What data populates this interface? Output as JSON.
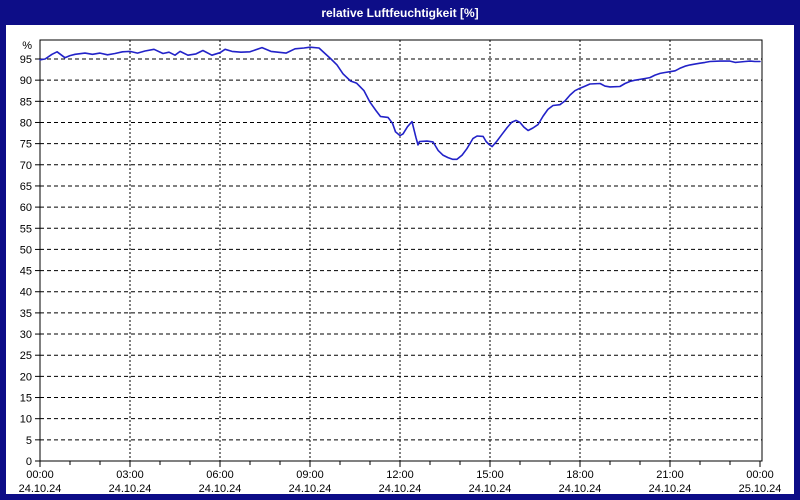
{
  "window": {
    "title": "relative Luftfeuchtigkeit [%]",
    "title_bar_color": "#0d0d87",
    "frame_color": "#0d0d87",
    "canvas_color": "#ffffff"
  },
  "chart_data": {
    "type": "line",
    "title": "relative Luftfeuchtigkeit [%]",
    "ylabel": "%",
    "xlabel": "",
    "grid": "dashed",
    "legend": "none",
    "ylim": [
      0,
      99.5
    ],
    "xlim_hours": [
      0,
      24
    ],
    "y_ticks": [
      0,
      5,
      10,
      15,
      20,
      25,
      30,
      35,
      40,
      45,
      50,
      55,
      60,
      65,
      70,
      75,
      80,
      85,
      90,
      95
    ],
    "x_ticks": [
      {
        "hour": 0,
        "time": "00:00",
        "date": "24.10.24"
      },
      {
        "hour": 3,
        "time": "03:00",
        "date": "24.10.24"
      },
      {
        "hour": 6,
        "time": "06:00",
        "date": "24.10.24"
      },
      {
        "hour": 9,
        "time": "09:00",
        "date": "24.10.24"
      },
      {
        "hour": 12,
        "time": "12:00",
        "date": "24.10.24"
      },
      {
        "hour": 15,
        "time": "15:00",
        "date": "24.10.24"
      },
      {
        "hour": 18,
        "time": "18:00",
        "date": "24.10.24"
      },
      {
        "hour": 21,
        "time": "21:00",
        "date": "24.10.24"
      },
      {
        "hour": 24,
        "time": "00:00",
        "date": "25.10.24"
      }
    ],
    "series": [
      {
        "name": "relative Luftfeuchtigkeit",
        "unit": "%",
        "color": "#2222c8",
        "points": [
          [
            0,
            94.8
          ],
          [
            0.17,
            95
          ],
          [
            0.4,
            96.1
          ],
          [
            0.57,
            96.7
          ],
          [
            0.83,
            95.3
          ],
          [
            1,
            95.8
          ],
          [
            1.17,
            96.1
          ],
          [
            1.5,
            96.4
          ],
          [
            1.75,
            96.1
          ],
          [
            2,
            96.4
          ],
          [
            2.25,
            96
          ],
          [
            2.5,
            96.3
          ],
          [
            2.75,
            96.7
          ],
          [
            3,
            96.8
          ],
          [
            3.25,
            96.4
          ],
          [
            3.5,
            96.9
          ],
          [
            3.8,
            97.3
          ],
          [
            4.1,
            96.3
          ],
          [
            4.3,
            96.6
          ],
          [
            4.5,
            95.9
          ],
          [
            4.67,
            96.8
          ],
          [
            4.93,
            95.9
          ],
          [
            5.2,
            96.2
          ],
          [
            5.43,
            97
          ],
          [
            5.73,
            95.9
          ],
          [
            6,
            96.5
          ],
          [
            6.17,
            97.3
          ],
          [
            6.4,
            96.8
          ],
          [
            6.7,
            96.6
          ],
          [
            7,
            96.7
          ],
          [
            7.4,
            97.7
          ],
          [
            7.7,
            96.8
          ],
          [
            8.2,
            96.4
          ],
          [
            8.5,
            97.4
          ],
          [
            8.8,
            97.6
          ],
          [
            9,
            97.8
          ],
          [
            9.3,
            97.6
          ],
          [
            9.5,
            96.3
          ],
          [
            9.7,
            95
          ],
          [
            9.9,
            93.6
          ],
          [
            10.1,
            91.5
          ],
          [
            10.35,
            89.8
          ],
          [
            10.55,
            89.3
          ],
          [
            10.8,
            87.5
          ],
          [
            11,
            84.8
          ],
          [
            11.2,
            82.8
          ],
          [
            11.35,
            81.4
          ],
          [
            11.6,
            81.2
          ],
          [
            11.75,
            79.8
          ],
          [
            11.85,
            77.8
          ],
          [
            12,
            76.9
          ],
          [
            12.1,
            77.3
          ],
          [
            12.25,
            79
          ],
          [
            12.4,
            80.2
          ],
          [
            12.53,
            76.5
          ],
          [
            12.6,
            74.7
          ],
          [
            12.65,
            75.5
          ],
          [
            12.9,
            75.6
          ],
          [
            13.1,
            75.4
          ],
          [
            13.27,
            73.4
          ],
          [
            13.43,
            72.3
          ],
          [
            13.6,
            71.7
          ],
          [
            13.75,
            71.3
          ],
          [
            13.9,
            71.3
          ],
          [
            14.07,
            72.3
          ],
          [
            14.23,
            73.8
          ],
          [
            14.33,
            75
          ],
          [
            14.43,
            76.2
          ],
          [
            14.57,
            76.8
          ],
          [
            14.77,
            76.7
          ],
          [
            14.87,
            75.5
          ],
          [
            14.97,
            74.8
          ],
          [
            15.07,
            74.3
          ],
          [
            15.23,
            75.6
          ],
          [
            15.4,
            77.2
          ],
          [
            15.57,
            78.8
          ],
          [
            15.73,
            80.1
          ],
          [
            15.87,
            80.5
          ],
          [
            16,
            80
          ],
          [
            16.13,
            78.9
          ],
          [
            16.27,
            78.1
          ],
          [
            16.43,
            78.7
          ],
          [
            16.6,
            79.5
          ],
          [
            16.77,
            81.5
          ],
          [
            16.93,
            83.1
          ],
          [
            17.1,
            84
          ],
          [
            17.33,
            84.2
          ],
          [
            17.5,
            85.1
          ],
          [
            17.67,
            86.5
          ],
          [
            17.83,
            87.5
          ],
          [
            18,
            88.1
          ],
          [
            18.17,
            88.6
          ],
          [
            18.33,
            89.1
          ],
          [
            18.67,
            89.2
          ],
          [
            18.83,
            88.6
          ],
          [
            19,
            88.4
          ],
          [
            19.33,
            88.5
          ],
          [
            19.5,
            89.2
          ],
          [
            19.67,
            89.7
          ],
          [
            19.83,
            90
          ],
          [
            20.17,
            90.4
          ],
          [
            20.33,
            90.6
          ],
          [
            20.5,
            91.2
          ],
          [
            20.67,
            91.6
          ],
          [
            20.83,
            91.8
          ],
          [
            21,
            92
          ],
          [
            21.17,
            92.2
          ],
          [
            21.33,
            92.8
          ],
          [
            21.5,
            93.3
          ],
          [
            21.67,
            93.6
          ],
          [
            21.83,
            93.8
          ],
          [
            22,
            94
          ],
          [
            22.17,
            94.2
          ],
          [
            22.33,
            94.4
          ],
          [
            22.67,
            94.5
          ],
          [
            23,
            94.5
          ],
          [
            23.17,
            94.2
          ],
          [
            23.33,
            94.3
          ],
          [
            23.5,
            94.4
          ],
          [
            23.67,
            94.5
          ],
          [
            23.83,
            94.4
          ],
          [
            24,
            94.4
          ]
        ]
      }
    ]
  }
}
